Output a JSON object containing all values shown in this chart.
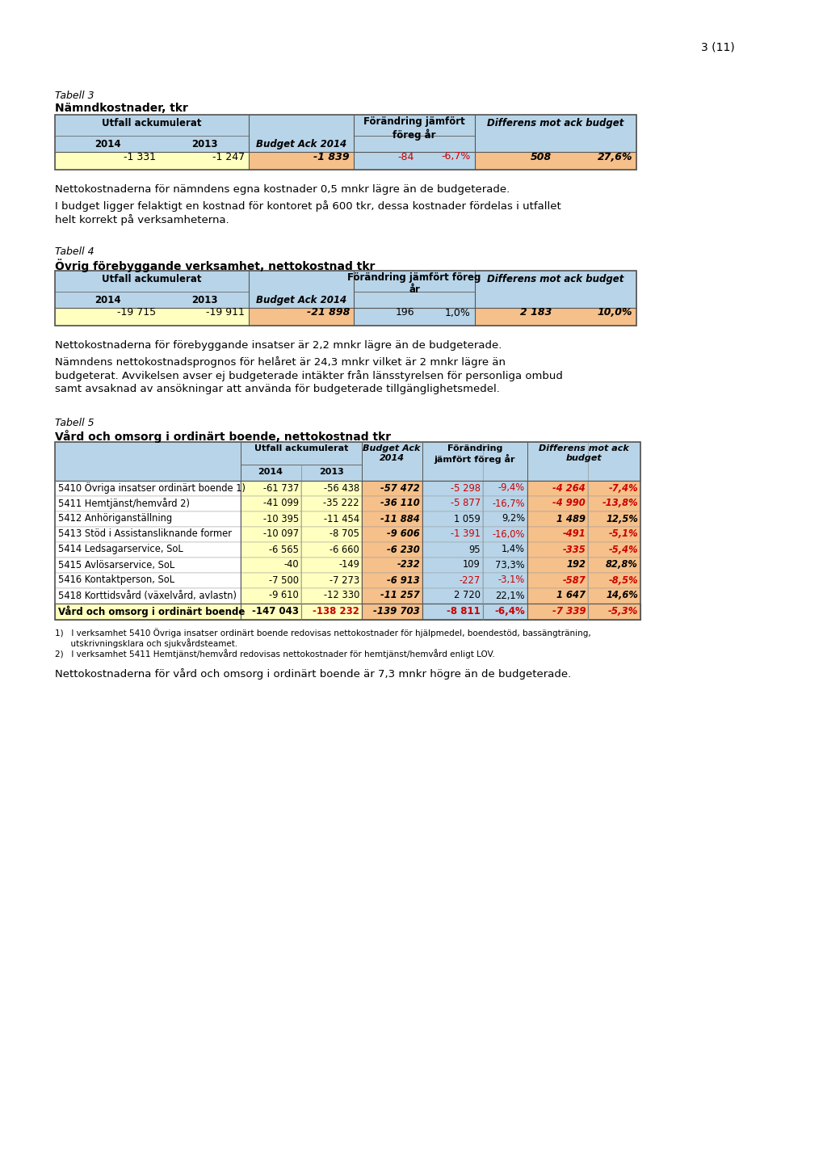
{
  "page_number": "3 (11)",
  "table3": {
    "title_italic": "Tabell 3",
    "title_bold": "Nämndkostnader, tkr",
    "data_row": [
      "-1 331",
      "-1 247",
      "-1 839",
      "-84",
      "-6,7%",
      "508",
      "27,6%"
    ]
  },
  "text1": "Nettokostnaderna för nämndens egna kostnader 0,5 mnkr lägre än de budgeterade.",
  "text2a": "I budget ligger felaktigt en kostnad för kontoret på 600 tkr, dessa kostnader fördelas i utfallet",
  "text2b": "helt korrekt på verksamheterna.",
  "table4": {
    "title_italic": "Tabell 4",
    "title_bold": "Övrig förebyggande verksamhet, nettokostnad tkr",
    "data_row": [
      "-19 715",
      "-19 911",
      "-21 898",
      "196",
      "1,0%",
      "2 183",
      "10,0%"
    ]
  },
  "text3": "Nettokostnaderna för förebyggande insatser är 2,2 mnkr lägre än de budgeterade.",
  "text4a": "Nämndens nettokostnadsprognos för helåret är 24,3 mnkr vilket är 2 mnkr lägre än",
  "text4b": "budgeterat. Avvikelsen avser ej budgeterade intäkter från länsstyrelsen för personliga ombud",
  "text4c": "samt avsaknad av ansökningar att använda för budgeterade tillgänglighetsmedel.",
  "table5": {
    "title_italic": "Tabell 5",
    "title_bold": "Vård och omsorg i ordinärt boende, nettokostnad tkr",
    "rows": [
      {
        "label": "5410 Övriga insatser ordinärt boende 1)",
        "v2014": "-61 737",
        "v2013": "-56 438",
        "budget": "-57 472",
        "fa": "-5 298",
        "fp": "-9,4%",
        "da": "-4 264",
        "dp": "-7,4%",
        "fn": true,
        "dn": true
      },
      {
        "label": "5411 Hemtjänst/hemvård 2)",
        "v2014": "-41 099",
        "v2013": "-35 222",
        "budget": "-36 110",
        "fa": "-5 877",
        "fp": "-16,7%",
        "da": "-4 990",
        "dp": "-13,8%",
        "fn": true,
        "dn": true
      },
      {
        "label": "5412 Anhöriganställning",
        "v2014": "-10 395",
        "v2013": "-11 454",
        "budget": "-11 884",
        "fa": "1 059",
        "fp": "9,2%",
        "da": "1 489",
        "dp": "12,5%",
        "fn": false,
        "dn": false
      },
      {
        "label": "5413 Stöd i Assistansliknande former",
        "v2014": "-10 097",
        "v2013": "-8 705",
        "budget": "-9 606",
        "fa": "-1 391",
        "fp": "-16,0%",
        "da": "-491",
        "dp": "-5,1%",
        "fn": true,
        "dn": true
      },
      {
        "label": "5414 Ledsagarservice, SoL",
        "v2014": "-6 565",
        "v2013": "-6 660",
        "budget": "-6 230",
        "fa": "95",
        "fp": "1,4%",
        "da": "-335",
        "dp": "-5,4%",
        "fn": false,
        "dn": true
      },
      {
        "label": "5415 Avlösarservice, SoL",
        "v2014": "-40",
        "v2013": "-149",
        "budget": "-232",
        "fa": "109",
        "fp": "73,3%",
        "da": "192",
        "dp": "82,8%",
        "fn": false,
        "dn": false
      },
      {
        "label": "5416 Kontaktperson, SoL",
        "v2014": "-7 500",
        "v2013": "-7 273",
        "budget": "-6 913",
        "fa": "-227",
        "fp": "-3,1%",
        "da": "-587",
        "dp": "-8,5%",
        "fn": true,
        "dn": true
      },
      {
        "label": "5418 Korttidsvård (växelvård, avlastn)",
        "v2014": "-9 610",
        "v2013": "-12 330",
        "budget": "-11 257",
        "fa": "2 720",
        "fp": "22,1%",
        "da": "1 647",
        "dp": "14,6%",
        "fn": false,
        "dn": false
      }
    ],
    "total": {
      "label": "Vård och omsorg i ordinärt boende",
      "v2014": "-147 043",
      "v2013": "-138 232",
      "budget": "-139 703",
      "fa": "-8 811",
      "fp": "-6,4%",
      "da": "-7 339",
      "dp": "-5,3%",
      "fn": true,
      "dn": true
    }
  },
  "fn1a": "1)   I verksamhet 5410 Övriga insatser ordinärt boende redovisas nettokostnader för hjälpmedel, boendestöd, bassängträning,",
  "fn1b": "      utskrivningsklara och sjukvårdsteamet.",
  "fn2": "2)   I verksamhet 5411 Hemtjänst/hemvård redovisas nettokostnader för hemtjänst/hemvård enligt LOV.",
  "text5": "Nettokostnaderna för vård och omsorg i ordinärt boende är 7,3 mnkr högre än de budgeterade.",
  "colors": {
    "LB": "#b8d4e8",
    "LY": "#ffffc0",
    "LO": "#f5c08a",
    "RED": "#cc0000",
    "BK": "#000000",
    "WH": "#ffffff",
    "border_light": "#999999",
    "border_dark": "#555555"
  }
}
